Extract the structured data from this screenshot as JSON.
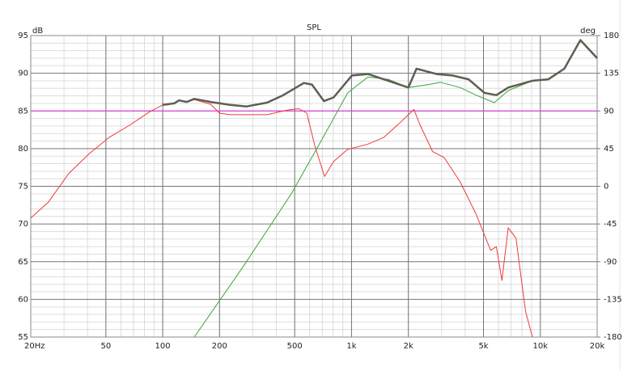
{
  "chart_data": {
    "type": "line",
    "title": "SPL",
    "y_label": "dB",
    "y2_label": "deg",
    "xscale": "log",
    "grid": true,
    "minor_grid": true,
    "xlim": [
      20,
      20000
    ],
    "xticks": [
      {
        "value": 20,
        "label": "20Hz"
      },
      50,
      100,
      200,
      500,
      {
        "value": 1000,
        "label": "1k"
      },
      {
        "value": 2000,
        "label": "2k"
      },
      {
        "value": 5000,
        "label": "5k"
      },
      {
        "value": 10000,
        "label": "10k"
      },
      {
        "value": 20000,
        "label": "20k"
      }
    ],
    "ylim": [
      55,
      95
    ],
    "yticks": [
      55,
      60,
      65,
      70,
      75,
      80,
      85,
      90,
      95
    ],
    "y2lim": [
      -180,
      180
    ],
    "y2ticks": [
      -180,
      -135,
      -90,
      -45,
      0,
      45,
      90,
      135,
      180
    ],
    "series": [
      {
        "color": "#e040e0",
        "width": 1.2,
        "x": [
          20,
          20000
        ],
        "values": [
          85,
          85
        ]
      },
      {
        "color": "#ee3a3a",
        "width": 1,
        "x": [
          20,
          24.8,
          31.8,
          40.7,
          52.1,
          66.7,
          85.4,
          100,
          115,
          122,
          134,
          147,
          179,
          200,
          228,
          357,
          456,
          526,
          580,
          639,
          720,
          804,
          954,
          1221,
          1484,
          1800,
          2000,
          2140,
          2310,
          2690,
          3100,
          3760,
          4570,
          5460,
          5850,
          6260,
          6760,
          7430,
          8350,
          9080
        ],
        "values": [
          70.8,
          72.9,
          76.7,
          79.3,
          81.5,
          83.1,
          84.9,
          85.8,
          86.0,
          86.4,
          86.2,
          86.5,
          85.9,
          84.7,
          84.5,
          84.5,
          85.1,
          85.3,
          84.7,
          80.4,
          76.3,
          78.3,
          79.9,
          80.6,
          81.5,
          83.4,
          84.5,
          85.2,
          83.1,
          79.6,
          78.8,
          75.6,
          71.3,
          66.5,
          67.0,
          62.5,
          69.5,
          68.1,
          58.4,
          55.0
        ]
      },
      {
        "color": "#3aa63a",
        "width": 1,
        "x": [
          147,
          266,
          480,
          715,
          954,
          1221,
          1565,
          2000,
          2560,
          2960,
          3760,
          4570,
          5700,
          6760,
          9080,
          11030,
          13400,
          16300,
          20000
        ],
        "values": [
          55.0,
          64.3,
          74.0,
          81.7,
          87.4,
          89.5,
          89.2,
          88.1,
          88.5,
          88.8,
          88.1,
          87.1,
          86.1,
          87.7,
          89.0,
          89.2,
          90.6,
          94.4,
          92.0
        ]
      },
      {
        "color": "#5e5e52",
        "width": 2.5,
        "x": [
          100,
          115,
          122,
          134,
          147,
          179,
          228,
          278,
          357,
          435,
          559,
          617,
          715,
          804,
          1005,
          1221,
          1565,
          2000,
          2208,
          2820,
          3427,
          4165,
          5060,
          5850,
          6760,
          9080,
          11030,
          13400,
          16300,
          20000
        ],
        "values": [
          85.8,
          86.0,
          86.4,
          86.2,
          86.6,
          86.2,
          85.8,
          85.6,
          86.1,
          87.1,
          88.7,
          88.5,
          86.3,
          86.8,
          89.7,
          89.9,
          89.0,
          88.1,
          90.6,
          89.9,
          89.7,
          89.2,
          87.4,
          87.1,
          88.1,
          89.0,
          89.2,
          90.6,
          94.4,
          92.0
        ]
      }
    ]
  }
}
